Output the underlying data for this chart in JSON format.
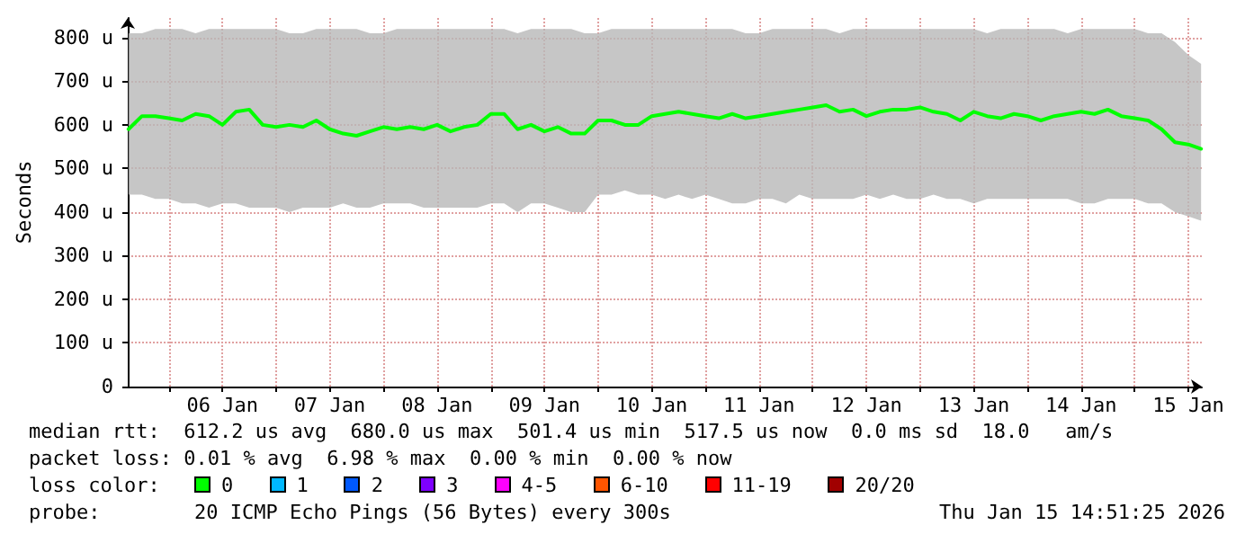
{
  "chart_data": {
    "type": "line",
    "ylabel": "Seconds",
    "x": [
      "2026-01-05T15:00",
      "2026-01-05T18:00",
      "2026-01-05T21:00",
      "2026-01-06T00:00",
      "2026-01-06T03:00",
      "2026-01-06T06:00",
      "2026-01-06T09:00",
      "2026-01-06T12:00",
      "2026-01-06T15:00",
      "2026-01-06T18:00",
      "2026-01-06T21:00",
      "2026-01-07T00:00",
      "2026-01-07T03:00",
      "2026-01-07T06:00",
      "2026-01-07T09:00",
      "2026-01-07T12:00",
      "2026-01-07T15:00",
      "2026-01-07T18:00",
      "2026-01-07T21:00",
      "2026-01-08T00:00",
      "2026-01-08T03:00",
      "2026-01-08T06:00",
      "2026-01-08T09:00",
      "2026-01-08T12:00",
      "2026-01-08T15:00",
      "2026-01-08T18:00",
      "2026-01-08T21:00",
      "2026-01-09T00:00",
      "2026-01-09T03:00",
      "2026-01-09T06:00",
      "2026-01-09T09:00",
      "2026-01-09T12:00",
      "2026-01-09T15:00",
      "2026-01-09T18:00",
      "2026-01-09T21:00",
      "2026-01-10T00:00",
      "2026-01-10T03:00",
      "2026-01-10T06:00",
      "2026-01-10T09:00",
      "2026-01-10T12:00",
      "2026-01-10T15:00",
      "2026-01-10T18:00",
      "2026-01-10T21:00",
      "2026-01-11T00:00",
      "2026-01-11T03:00",
      "2026-01-11T06:00",
      "2026-01-11T09:00",
      "2026-01-11T12:00",
      "2026-01-11T15:00",
      "2026-01-11T18:00",
      "2026-01-11T21:00",
      "2026-01-12T00:00",
      "2026-01-12T03:00",
      "2026-01-12T06:00",
      "2026-01-12T09:00",
      "2026-01-12T12:00",
      "2026-01-12T15:00",
      "2026-01-12T18:00",
      "2026-01-12T21:00",
      "2026-01-13T00:00",
      "2026-01-13T03:00",
      "2026-01-13T06:00",
      "2026-01-13T09:00",
      "2026-01-13T12:00",
      "2026-01-13T15:00",
      "2026-01-13T18:00",
      "2026-01-13T21:00",
      "2026-01-14T00:00",
      "2026-01-14T03:00",
      "2026-01-14T06:00",
      "2026-01-14T09:00",
      "2026-01-14T12:00",
      "2026-01-14T15:00",
      "2026-01-14T18:00",
      "2026-01-14T21:00",
      "2026-01-15T00:00",
      "2026-01-15T03:00",
      "2026-01-15T06:00",
      "2026-01-15T09:00",
      "2026-01-15T12:00",
      "2026-01-15T14:50"
    ],
    "series": [
      {
        "color": "#00ff00",
        "values": [
          590,
          620,
          620,
          615,
          610,
          625,
          620,
          600,
          630,
          635,
          600,
          595,
          600,
          595,
          610,
          590,
          580,
          575,
          585,
          595,
          590,
          595,
          590,
          600,
          585,
          595,
          600,
          625,
          625,
          590,
          600,
          585,
          595,
          580,
          580,
          610,
          610,
          600,
          600,
          620,
          625,
          630,
          625,
          620,
          615,
          625,
          615,
          620,
          625,
          630,
          635,
          640,
          645,
          630,
          635,
          620,
          630,
          635,
          635,
          640,
          630,
          625,
          610,
          630,
          620,
          615,
          625,
          620,
          610,
          620,
          625,
          630,
          625,
          635,
          620,
          615,
          610,
          590,
          560,
          555,
          545
        ],
        "lower": [
          440,
          440,
          430,
          430,
          420,
          420,
          410,
          420,
          420,
          410,
          410,
          410,
          400,
          410,
          410,
          410,
          420,
          410,
          410,
          420,
          420,
          420,
          410,
          410,
          410,
          410,
          410,
          420,
          420,
          400,
          420,
          420,
          410,
          400,
          400,
          440,
          440,
          450,
          440,
          440,
          430,
          440,
          430,
          440,
          430,
          420,
          420,
          430,
          430,
          420,
          440,
          430,
          430,
          430,
          430,
          440,
          430,
          440,
          430,
          430,
          440,
          430,
          430,
          420,
          430,
          430,
          430,
          430,
          430,
          430,
          430,
          420,
          420,
          430,
          430,
          430,
          420,
          420,
          400,
          390,
          380
        ],
        "upper": [
          810,
          810,
          820,
          820,
          820,
          810,
          820,
          820,
          820,
          820,
          820,
          820,
          810,
          810,
          820,
          820,
          820,
          820,
          810,
          810,
          820,
          820,
          820,
          820,
          820,
          820,
          820,
          820,
          820,
          810,
          820,
          820,
          820,
          820,
          810,
          810,
          820,
          820,
          820,
          820,
          820,
          820,
          820,
          820,
          820,
          820,
          810,
          810,
          820,
          820,
          820,
          820,
          820,
          810,
          820,
          820,
          820,
          820,
          820,
          820,
          820,
          820,
          820,
          820,
          810,
          820,
          820,
          820,
          820,
          820,
          810,
          820,
          820,
          820,
          820,
          820,
          810,
          810,
          790,
          760,
          740
        ]
      }
    ],
    "xlim": [
      "2026-01-05T14:50",
      "2026-01-15T15:00"
    ],
    "xticks": [
      {
        "value": "2026-01-06T00:00",
        "label": null
      },
      {
        "value": "2026-01-06T12:00",
        "label": "06 Jan"
      },
      {
        "value": "2026-01-07T00:00",
        "label": null
      },
      {
        "value": "2026-01-07T12:00",
        "label": "07 Jan"
      },
      {
        "value": "2026-01-08T00:00",
        "label": null
      },
      {
        "value": "2026-01-08T12:00",
        "label": "08 Jan"
      },
      {
        "value": "2026-01-09T00:00",
        "label": null
      },
      {
        "value": "2026-01-09T12:00",
        "label": "09 Jan"
      },
      {
        "value": "2026-01-10T00:00",
        "label": null
      },
      {
        "value": "2026-01-10T12:00",
        "label": "10 Jan"
      },
      {
        "value": "2026-01-11T00:00",
        "label": null
      },
      {
        "value": "2026-01-11T12:00",
        "label": "11 Jan"
      },
      {
        "value": "2026-01-12T00:00",
        "label": null
      },
      {
        "value": "2026-01-12T12:00",
        "label": "12 Jan"
      },
      {
        "value": "2026-01-13T00:00",
        "label": null
      },
      {
        "value": "2026-01-13T12:00",
        "label": "13 Jan"
      },
      {
        "value": "2026-01-14T00:00",
        "label": null
      },
      {
        "value": "2026-01-14T12:00",
        "label": "14 Jan"
      },
      {
        "value": "2026-01-15T00:00",
        "label": null
      },
      {
        "value": "2026-01-15T12:00",
        "label": "15 Jan"
      }
    ],
    "ylim": [
      0,
      845
    ],
    "yticks": [
      0,
      {
        "value": 100,
        "label": "100 u"
      },
      {
        "value": 200,
        "label": "200 u"
      },
      {
        "value": 300,
        "label": "300 u"
      },
      {
        "value": 400,
        "label": "400 u"
      },
      {
        "value": 500,
        "label": "500 u"
      },
      {
        "value": 600,
        "label": "600 u"
      },
      {
        "value": 700,
        "label": "700 u"
      },
      {
        "value": 800,
        "label": "800 u"
      }
    ],
    "grid": true,
    "marker": "none",
    "line_style": "solid",
    "annotations": [
      "median rtt:  612.2 us avg  680.0 us max  501.4 us min  517.5 us now  0.0 ms sd  18.0   am/s",
      "packet loss: 0.01 % avg  6.98 % max  0.00 % min  0.00 % now",
      "loss color:",
      "0",
      "1",
      "2",
      "3",
      "4-5",
      "6-10",
      "11-19",
      "20/20",
      "probe:",
      "20 ICMP Echo Pings (56 Bytes) every 300s",
      "Thu Jan 15 14:51:25 2026"
    ]
  }
}
